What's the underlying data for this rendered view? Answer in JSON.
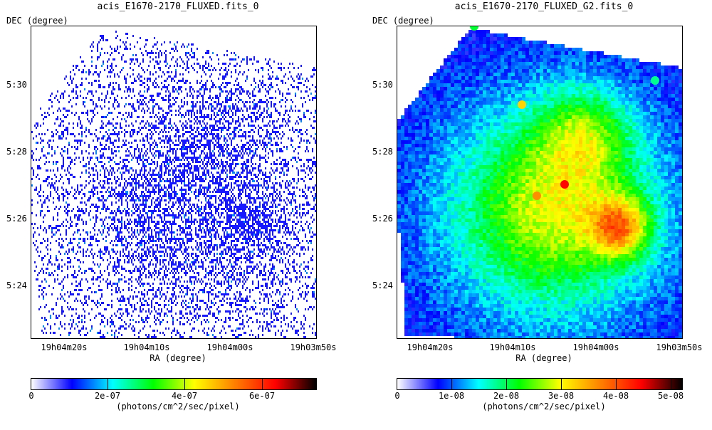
{
  "chart_data": [
    {
      "type": "heatmap",
      "title": "acis_E1670-2170_FLUXED.fits_0",
      "xlabel": "RA (degree)",
      "ylabel": "DEC (degree)",
      "x_ticks": [
        "19h04m20s",
        "19h04m10s",
        "19h04m00s",
        "19h03m50s"
      ],
      "y_ticks": [
        "5:30",
        "5:28",
        "5:26",
        "5:24"
      ],
      "colorbar_label": "(photons/cm^2/sec/pixel)",
      "colorbar_ticks": [
        "0",
        "2e-07",
        "4e-07",
        "6e-07"
      ],
      "colorbar_range": [
        0,
        7.4e-07
      ],
      "colormap": [
        "#ffffff",
        "#0000ff",
        "#00ffff",
        "#00ff00",
        "#ffff00",
        "#ff8000",
        "#ff0000",
        "#000000"
      ],
      "description_style": "sparse"
    },
    {
      "type": "heatmap",
      "title": "acis_E1670-2170_FLUXED_G2.fits_0",
      "xlabel": "RA (degree)",
      "ylabel": "DEC (degree)",
      "x_ticks": [
        "19h04m20s",
        "19h04m10s",
        "19h04m00s",
        "19h03m50s"
      ],
      "y_ticks": [
        "5:30",
        "5:28",
        "5:26",
        "5:24"
      ],
      "colorbar_label": "(photons/cm^2/sec/pixel)",
      "colorbar_ticks": [
        "0",
        "1e-08",
        "2e-08",
        "3e-08",
        "4e-08",
        "5e-08"
      ],
      "colorbar_range": [
        0,
        5.2e-08
      ],
      "colormap": [
        "#ffffff",
        "#0000ff",
        "#00ffff",
        "#00ff00",
        "#ffff00",
        "#ff8000",
        "#ff0000",
        "#000000"
      ],
      "description_style": "smooth"
    }
  ]
}
